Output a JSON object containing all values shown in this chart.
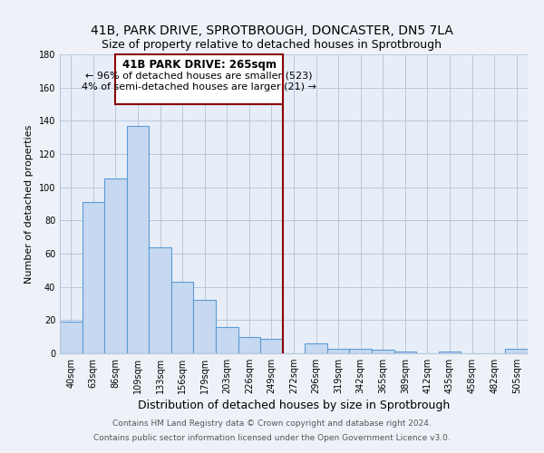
{
  "title": "41B, PARK DRIVE, SPROTBROUGH, DONCASTER, DN5 7LA",
  "subtitle": "Size of property relative to detached houses in Sprotbrough",
  "xlabel": "Distribution of detached houses by size in Sprotbrough",
  "ylabel": "Number of detached properties",
  "bar_labels": [
    "40sqm",
    "63sqm",
    "86sqm",
    "109sqm",
    "133sqm",
    "156sqm",
    "179sqm",
    "203sqm",
    "226sqm",
    "249sqm",
    "272sqm",
    "296sqm",
    "319sqm",
    "342sqm",
    "365sqm",
    "389sqm",
    "412sqm",
    "435sqm",
    "458sqm",
    "482sqm",
    "505sqm"
  ],
  "bar_values": [
    19,
    91,
    105,
    137,
    64,
    43,
    32,
    16,
    10,
    9,
    0,
    6,
    3,
    3,
    2,
    1,
    0,
    1,
    0,
    0,
    3
  ],
  "bar_color": "#c6d9f0",
  "bar_edge_color": "#5b9bd5",
  "ylim": [
    0,
    180
  ],
  "yticks": [
    0,
    20,
    40,
    60,
    80,
    100,
    120,
    140,
    160,
    180
  ],
  "vline_color": "#8b0000",
  "annotation_title": "41B PARK DRIVE: 265sqm",
  "annotation_line1": "← 96% of detached houses are smaller (523)",
  "annotation_line2": "4% of semi-detached houses are larger (21) →",
  "footer_line1": "Contains HM Land Registry data © Crown copyright and database right 2024.",
  "footer_line2": "Contains public sector information licensed under the Open Government Licence v3.0.",
  "bg_color": "#eef2f8",
  "plot_bg_color": "#e8eef8"
}
